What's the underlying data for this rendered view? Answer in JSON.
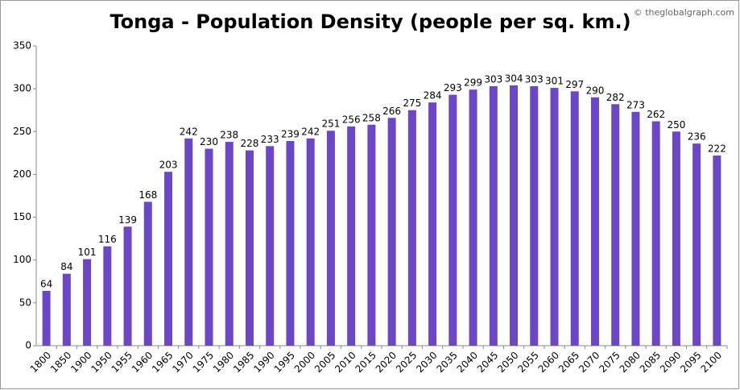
{
  "chart_data": {
    "type": "bar",
    "title": "Tonga - Population Density (people per sq. km.)",
    "watermark": "© theglobalgraph.com",
    "categories": [
      "1800",
      "1850",
      "1900",
      "1950",
      "1955",
      "1960",
      "1965",
      "1970",
      "1975",
      "1980",
      "1985",
      "1990",
      "1995",
      "2000",
      "2005",
      "2010",
      "2015",
      "2020",
      "2025",
      "2030",
      "2035",
      "2040",
      "2045",
      "2050",
      "2055",
      "2060",
      "2065",
      "2070",
      "2075",
      "2080",
      "2085",
      "2090",
      "2095",
      "2100"
    ],
    "values": [
      64,
      84,
      101,
      116,
      139,
      168,
      203,
      242,
      230,
      238,
      228,
      233,
      239,
      242,
      251,
      256,
      258,
      266,
      275,
      284,
      293,
      299,
      303,
      304,
      303,
      301,
      297,
      290,
      282,
      273,
      262,
      250,
      236,
      222
    ],
    "color": "#6b46c6",
    "ylim": [
      0,
      350
    ],
    "yticks": [
      0,
      50,
      100,
      150,
      200,
      250,
      300,
      350
    ],
    "grid": false
  }
}
